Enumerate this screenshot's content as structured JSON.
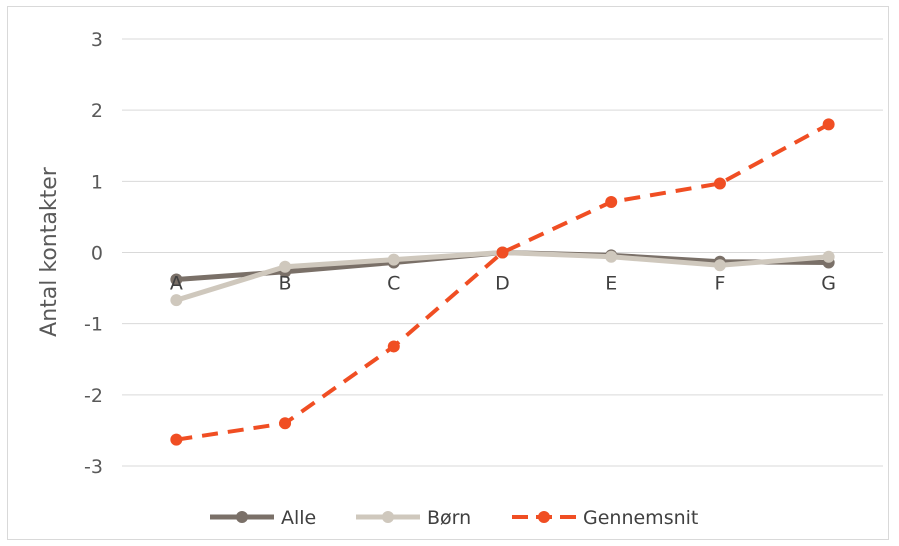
{
  "chart_data": {
    "type": "line",
    "title": "",
    "xlabel": "",
    "ylabel": "Antal kontakter",
    "categories": [
      "A",
      "B",
      "C",
      "D",
      "E",
      "F",
      "G"
    ],
    "ylim": [
      -3,
      3
    ],
    "yticks": [
      3,
      2,
      1,
      0,
      -1,
      -2,
      -3
    ],
    "grid": true,
    "legend_position": "bottom",
    "series": [
      {
        "name": "Alle",
        "values": [
          -0.38,
          -0.27,
          -0.14,
          0.0,
          -0.04,
          -0.13,
          -0.14
        ],
        "color": "#7a7068",
        "dashed": false
      },
      {
        "name": "Børn",
        "values": [
          -0.67,
          -0.2,
          -0.1,
          0.0,
          -0.06,
          -0.18,
          -0.06
        ],
        "color": "#cfc8bd",
        "dashed": false
      },
      {
        "name": "Gennemsnit",
        "values": [
          -2.63,
          -2.4,
          -1.32,
          0.0,
          0.71,
          0.97,
          1.8
        ],
        "color": "#f04e23",
        "dashed": true
      }
    ]
  }
}
